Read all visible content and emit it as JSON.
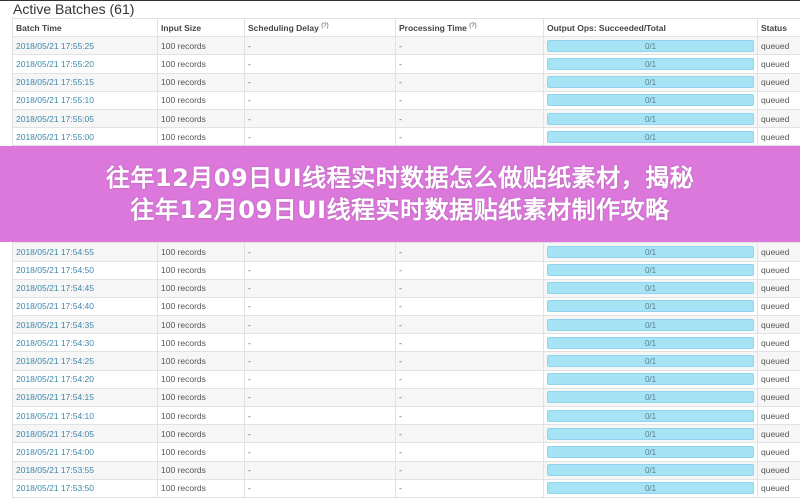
{
  "section_title": "Active Batches (61)",
  "columns": {
    "batch_time": "Batch Time",
    "input_size": "Input Size",
    "scheduling_delay": "Scheduling Delay",
    "processing_time": "Processing Time",
    "output_ops": "Output Ops: Succeeded/Total",
    "status": "Status",
    "help_mark": "(?)"
  },
  "rows": [
    {
      "time": "2018/05/21 17:55:25",
      "input": "100 records",
      "delay": "-",
      "proc": "-",
      "ops": "0/1",
      "status": "queued"
    },
    {
      "time": "2018/05/21 17:55:20",
      "input": "100 records",
      "delay": "-",
      "proc": "-",
      "ops": "0/1",
      "status": "queued"
    },
    {
      "time": "2018/05/21 17:55:15",
      "input": "100 records",
      "delay": "-",
      "proc": "-",
      "ops": "0/1",
      "status": "queued"
    },
    {
      "time": "2018/05/21 17:55:10",
      "input": "100 records",
      "delay": "-",
      "proc": "-",
      "ops": "0/1",
      "status": "queued"
    },
    {
      "time": "2018/05/21 17:55:05",
      "input": "100 records",
      "delay": "-",
      "proc": "-",
      "ops": "0/1",
      "status": "queued"
    },
    {
      "time": "2018/05/21 17:55:00",
      "input": "100 records",
      "delay": "-",
      "proc": "-",
      "ops": "0/1",
      "status": "queued"
    },
    {
      "time": "2018/05/21 17:54:55",
      "input": "100 records",
      "delay": "-",
      "proc": "-",
      "ops": "0/1",
      "status": "queued"
    },
    {
      "time": "2018/05/21 17:54:50",
      "input": "100 records",
      "delay": "-",
      "proc": "-",
      "ops": "0/1",
      "status": "queued"
    },
    {
      "time": "2018/05/21 17:54:45",
      "input": "100 records",
      "delay": "-",
      "proc": "-",
      "ops": "0/1",
      "status": "queued"
    },
    {
      "time": "2018/05/21 17:54:40",
      "input": "100 records",
      "delay": "-",
      "proc": "-",
      "ops": "0/1",
      "status": "queued"
    },
    {
      "time": "2018/05/21 17:54:35",
      "input": "100 records",
      "delay": "-",
      "proc": "-",
      "ops": "0/1",
      "status": "queued"
    },
    {
      "time": "2018/05/21 17:54:30",
      "input": "100 records",
      "delay": "-",
      "proc": "-",
      "ops": "0/1",
      "status": "queued"
    },
    {
      "time": "2018/05/21 17:54:25",
      "input": "100 records",
      "delay": "-",
      "proc": "-",
      "ops": "0/1",
      "status": "queued"
    },
    {
      "time": "2018/05/21 17:54:20",
      "input": "100 records",
      "delay": "-",
      "proc": "-",
      "ops": "0/1",
      "status": "queued"
    },
    {
      "time": "2018/05/21 17:54:15",
      "input": "100 records",
      "delay": "-",
      "proc": "-",
      "ops": "0/1",
      "status": "queued"
    },
    {
      "time": "2018/05/21 17:54:10",
      "input": "100 records",
      "delay": "-",
      "proc": "-",
      "ops": "0/1",
      "status": "queued"
    },
    {
      "time": "2018/05/21 17:54:05",
      "input": "100 records",
      "delay": "-",
      "proc": "-",
      "ops": "0/1",
      "status": "queued"
    },
    {
      "time": "2018/05/21 17:54:00",
      "input": "100 records",
      "delay": "-",
      "proc": "-",
      "ops": "0/1",
      "status": "queued"
    },
    {
      "time": "2018/05/21 17:53:55",
      "input": "100 records",
      "delay": "-",
      "proc": "-",
      "ops": "0/1",
      "status": "queued"
    },
    {
      "time": "2018/05/21 17:53:50",
      "input": "100 records",
      "delay": "-",
      "proc": "-",
      "ops": "0/1",
      "status": "queued"
    }
  ],
  "banner": {
    "line1": "往年12月09日UI线程实时数据怎么做贴纸素材，揭秘",
    "line2": "往年12月09日UI线程实时数据贴纸素材制作攻略",
    "color": "#d660d6"
  }
}
